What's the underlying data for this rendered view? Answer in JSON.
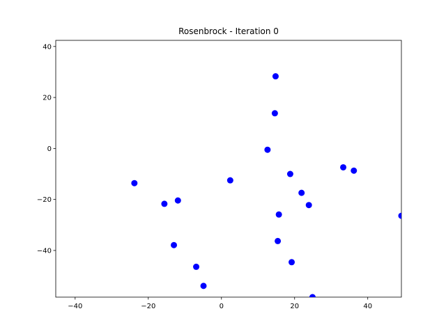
{
  "chart_data": {
    "type": "scatter",
    "title": "Rosenbrock - Iteration 0",
    "xlabel": "",
    "ylabel": "",
    "xlim": [
      -45.3,
      49.2
    ],
    "ylim": [
      -58.3,
      42.4
    ],
    "xticks": [
      -40,
      -20,
      0,
      20,
      40
    ],
    "yticks": [
      -40,
      -20,
      0,
      20,
      40
    ],
    "grid": false,
    "marker_color": "#0000ff",
    "points": [
      {
        "x": 14.8,
        "y": 28.3
      },
      {
        "x": 14.6,
        "y": 13.8
      },
      {
        "x": 12.6,
        "y": -0.5
      },
      {
        "x": 18.8,
        "y": -10.0
      },
      {
        "x": 33.3,
        "y": -7.4
      },
      {
        "x": 36.2,
        "y": -8.7
      },
      {
        "x": 2.4,
        "y": -12.5
      },
      {
        "x": -23.8,
        "y": -13.6
      },
      {
        "x": 21.9,
        "y": -17.4
      },
      {
        "x": -11.9,
        "y": -20.4
      },
      {
        "x": -15.6,
        "y": -21.7
      },
      {
        "x": 23.9,
        "y": -22.2
      },
      {
        "x": 15.7,
        "y": -25.9
      },
      {
        "x": 49.2,
        "y": -26.4
      },
      {
        "x": 15.4,
        "y": -36.3
      },
      {
        "x": -13.0,
        "y": -37.9
      },
      {
        "x": 19.2,
        "y": -44.6
      },
      {
        "x": -6.9,
        "y": -46.4
      },
      {
        "x": -4.9,
        "y": -53.9
      },
      {
        "x": 24.9,
        "y": -58.3
      }
    ]
  }
}
